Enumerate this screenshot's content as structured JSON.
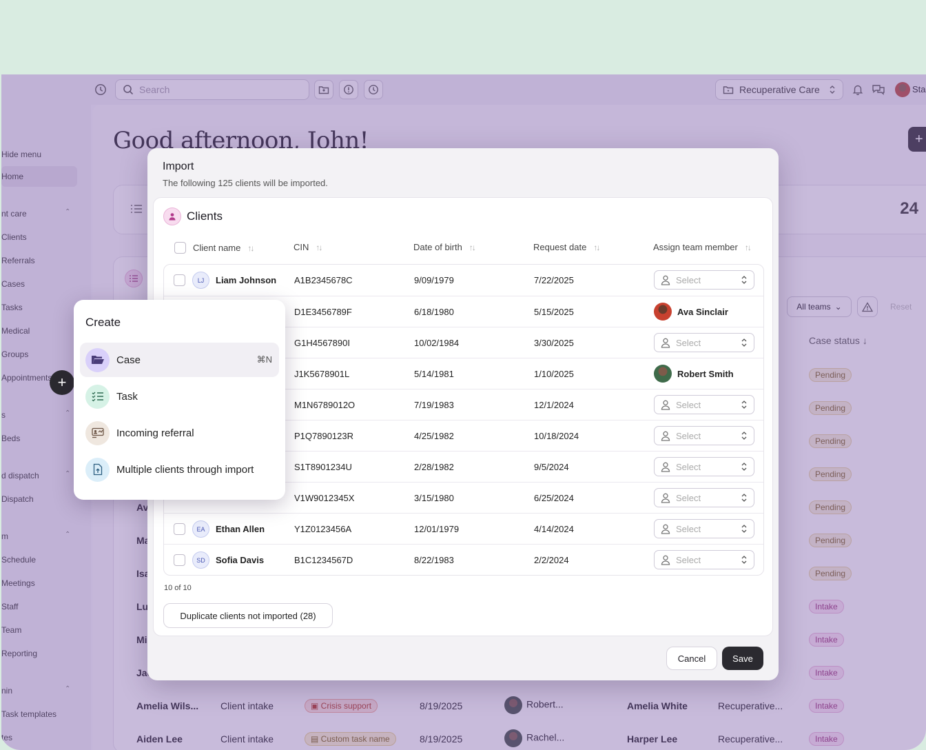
{
  "topbar": {
    "search_placeholder": "Search",
    "program": "Recuperative Care",
    "user_partial": "Sta"
  },
  "sidebar": {
    "hide_menu": "Hide menu",
    "home": "Home",
    "section_care": "nt care",
    "items_care": [
      "Clients",
      "Referrals",
      "Cases",
      "Tasks",
      "Medical",
      "Groups",
      "Appointments"
    ],
    "section_s": "s",
    "items_s": [
      "Beds"
    ],
    "section_dispatch": "d dispatch",
    "items_dispatch": [
      "Dispatch"
    ],
    "section_m": "m",
    "items_m": [
      "Schedule",
      "Meetings",
      "Staff",
      "Team",
      "Reporting"
    ],
    "section_admin": "nin",
    "items_admin": [
      "Task templates",
      "tes"
    ]
  },
  "main": {
    "greeting": "Good afternoon, John!",
    "stat_value": "24",
    "all_teams": "All teams",
    "reset": "Reset",
    "case_status_header": "Case status",
    "bg_rows_left": [
      {
        "name": "Av",
        "status": "Pending"
      },
      {
        "name": "Ma",
        "status": "Pending"
      },
      {
        "name": "Isa",
        "status": "Pending"
      },
      {
        "name": "Luc",
        "status": "Intake"
      },
      {
        "name": "Mi",
        "status": "Intake"
      },
      {
        "name": "Jac",
        "status": "Intake"
      }
    ],
    "bg_row_a": {
      "client": "Amelia Wils...",
      "type": "Client intake",
      "tag": "Crisis support",
      "date": "8/19/2025",
      "assignee": "Robert...",
      "right_name": "Amelia White",
      "program": "Recuperative...",
      "status": "Intake"
    },
    "bg_row_b": {
      "client": "Aiden Lee",
      "type": "Client intake",
      "tag": "Custom task name",
      "date": "8/19/2025",
      "assignee": "Rachel...",
      "right_name": "Harper Lee",
      "program": "Recuperative...",
      "status": "Intake"
    },
    "pending_top": [
      "Pending",
      "Pending",
      "Pending",
      "Pending"
    ]
  },
  "modal": {
    "title": "Import",
    "subtitle": "The following 125 clients will be imported.",
    "section_title": "Clients",
    "columns": [
      "Client name",
      "CIN",
      "Date of birth",
      "Request date",
      "Assign team member"
    ],
    "select_placeholder": "Select",
    "rows": [
      {
        "initials": "LJ",
        "name": "Liam Johnson",
        "cin": "A1B2345678C",
        "dob": "9/09/1979",
        "request": "7/22/2025",
        "member": ""
      },
      {
        "initials": "",
        "name": "",
        "cin": "D1E3456789F",
        "dob": "6/18/1980",
        "request": "5/15/2025",
        "member": "Ava Sinclair"
      },
      {
        "initials": "",
        "name": "",
        "cin": "G1H4567890I",
        "dob": "10/02/1984",
        "request": "3/30/2025",
        "member": ""
      },
      {
        "initials": "",
        "name": "",
        "cin": "J1K5678901L",
        "dob": "5/14/1981",
        "request": "1/10/2025",
        "member": "Robert Smith"
      },
      {
        "initials": "",
        "name": "",
        "cin": "M1N6789012O",
        "dob": "7/19/1983",
        "request": "12/1/2024",
        "member": ""
      },
      {
        "initials": "",
        "name": "",
        "cin": "P1Q7890123R",
        "dob": "4/25/1982",
        "request": "10/18/2024",
        "member": ""
      },
      {
        "initials": "",
        "name": "",
        "cin": "S1T8901234U",
        "dob": "2/28/1982",
        "request": "9/5/2024",
        "member": ""
      },
      {
        "initials": "",
        "name": "",
        "cin": "V1W9012345X",
        "dob": "3/15/1980",
        "request": "6/25/2024",
        "member": ""
      },
      {
        "initials": "EA",
        "name": "Ethan Allen",
        "cin": "Y1Z0123456A",
        "dob": "12/01/1979",
        "request": "4/14/2024",
        "member": ""
      },
      {
        "initials": "SD",
        "name": "Sofia Davis",
        "cin": "B1C1234567D",
        "dob": "8/22/1983",
        "request": "2/2/2024",
        "member": ""
      }
    ],
    "count": "10 of 10",
    "duplicate_button": "Duplicate clients not imported (28)",
    "cancel": "Cancel",
    "save": "Save"
  },
  "create_menu": {
    "title": "Create",
    "items": [
      {
        "label": "Case",
        "shortcut": "⌘N",
        "icon": "folder-open-icon",
        "color": "#d9d0fa"
      },
      {
        "label": "Task",
        "shortcut": "",
        "icon": "checklist-icon",
        "color": "#d6f2e6"
      },
      {
        "label": "Incoming referral",
        "shortcut": "",
        "icon": "referral-icon",
        "color": "#efe7df"
      },
      {
        "label": "Multiple clients through import",
        "shortcut": "",
        "icon": "file-import-icon",
        "color": "#dbeef9"
      }
    ]
  }
}
